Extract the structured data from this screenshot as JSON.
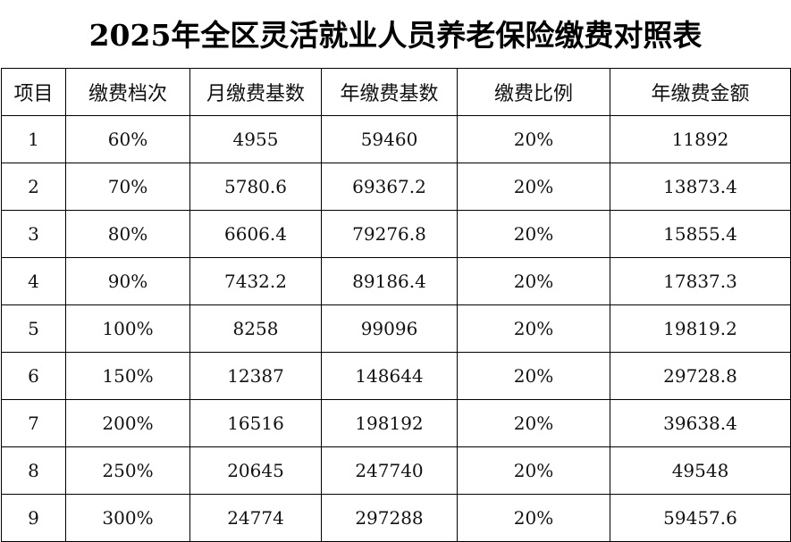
{
  "title": "2025年全区灵活就业人员养老保险缴费对照表",
  "headers": [
    "项目",
    "缴费档次",
    "月缴费基数",
    "年缴费基数",
    "缴费比例",
    "年缴费金额"
  ],
  "rows": [
    [
      "1",
      "60%",
      "4955",
      "59460",
      "20%",
      "11892"
    ],
    [
      "2",
      "70%",
      "5780.6",
      "69367.2",
      "20%",
      "13873.4"
    ],
    [
      "3",
      "80%",
      "6606.4",
      "79276.8",
      "20%",
      "15855.4"
    ],
    [
      "4",
      "90%",
      "7432.2",
      "89186.4",
      "20%",
      "17837.3"
    ],
    [
      "5",
      "100%",
      "8258",
      "99096",
      "20%",
      "19819.2"
    ],
    [
      "6",
      "150%",
      "12387",
      "148644",
      "20%",
      "29728.8"
    ],
    [
      "7",
      "200%",
      "16516",
      "198192",
      "20%",
      "39638.4"
    ],
    [
      "8",
      "250%",
      "20645",
      "247740",
      "20%",
      "49548"
    ],
    [
      "9",
      "300%",
      "24774",
      "297288",
      "20%",
      "59457.6"
    ]
  ]
}
